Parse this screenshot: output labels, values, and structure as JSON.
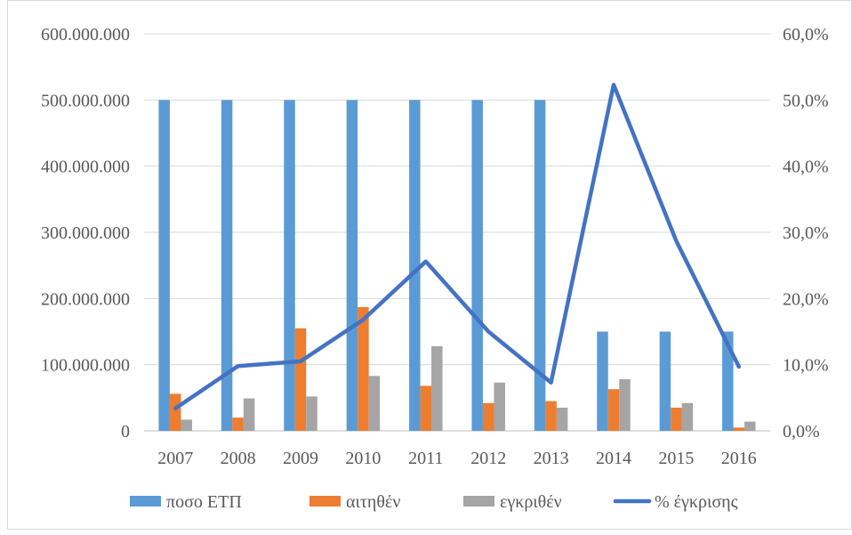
{
  "chart_data": {
    "type": "bar",
    "categories": [
      "2007",
      "2008",
      "2009",
      "2010",
      "2011",
      "2012",
      "2013",
      "2014",
      "2015",
      "2016"
    ],
    "series": [
      {
        "name": "ποσο ΕΤΠ",
        "type": "bar",
        "axis": "left",
        "color": "#5B9BD5",
        "values": [
          500000000,
          500000000,
          500000000,
          500000000,
          500000000,
          500000000,
          500000000,
          150000000,
          150000000,
          150000000
        ]
      },
      {
        "name": "αιτηθέν",
        "type": "bar",
        "axis": "left",
        "color": "#ED7D31",
        "values": [
          56000000,
          20000000,
          155000000,
          187000000,
          68000000,
          42000000,
          45000000,
          63000000,
          35000000,
          5000000
        ]
      },
      {
        "name": "εγκριθέν",
        "type": "bar",
        "axis": "left",
        "color": "#A5A5A5",
        "values": [
          17000000,
          49000000,
          52000000,
          83000000,
          128000000,
          73000000,
          35000000,
          78000000,
          42000000,
          14000000
        ]
      },
      {
        "name": "% έγκρισης",
        "type": "line",
        "axis": "right",
        "color": "#4472C4",
        "values": [
          3.4,
          9.8,
          10.5,
          16.8,
          25.6,
          15.0,
          7.3,
          52.3,
          28.7,
          9.7
        ]
      }
    ],
    "y_left": {
      "min": 0,
      "max": 600000000,
      "ticks": [
        0,
        100000000,
        200000000,
        300000000,
        400000000,
        500000000,
        600000000
      ],
      "tick_labels": [
        "0",
        "100.000.000",
        "200.000.000",
        "300.000.000",
        "400.000.000",
        "500.000.000",
        "600.000.000"
      ]
    },
    "y_right": {
      "min": 0,
      "max": 60,
      "ticks": [
        0,
        10,
        20,
        30,
        40,
        50,
        60
      ],
      "tick_labels": [
        "0,0%",
        "10,0%",
        "20,0%",
        "30,0%",
        "40,0%",
        "50,0%",
        "60,0%"
      ]
    },
    "grid": true,
    "legend_position": "bottom",
    "title": "",
    "xlabel": "",
    "ylabel": ""
  }
}
